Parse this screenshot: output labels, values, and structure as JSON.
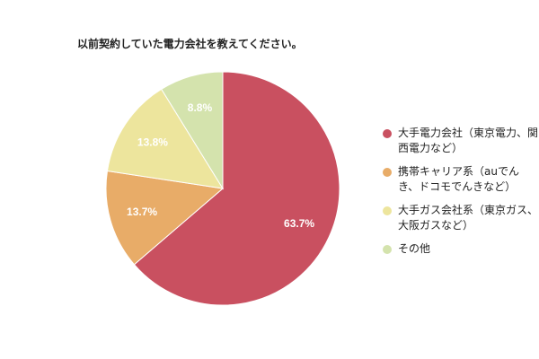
{
  "chart_data": {
    "type": "pie",
    "title": "以前契約していた電力会社を教えてください。",
    "legend_position": "right",
    "slices": [
      {
        "label": "大手電力会社（東京電力、関西電力など）",
        "value": 63.7,
        "display": "63.7%",
        "color": "#c95060"
      },
      {
        "label": "携帯キャリア系（auでんき、ドコモでんきなど）",
        "value": 13.7,
        "display": "13.7%",
        "color": "#e8ac68"
      },
      {
        "label": "大手ガス会社系（東京ガス、大阪ガスなど）",
        "value": 13.8,
        "display": "13.8%",
        "color": "#ede59d"
      },
      {
        "label": "その他",
        "value": 8.8,
        "display": "8.8%",
        "color": "#d4e3ad"
      }
    ]
  }
}
